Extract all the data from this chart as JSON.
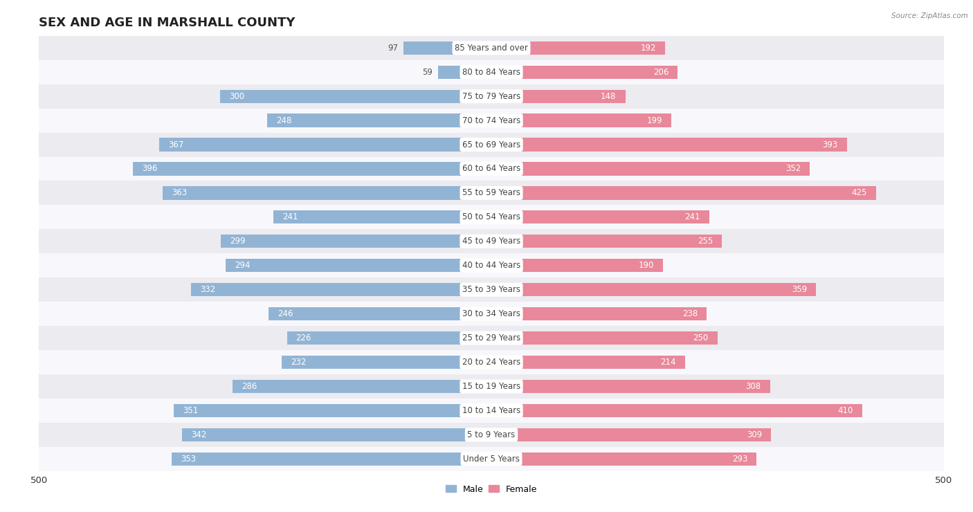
{
  "title": "SEX AND AGE IN MARSHALL COUNTY",
  "source": "Source: ZipAtlas.com",
  "categories": [
    "85 Years and over",
    "80 to 84 Years",
    "75 to 79 Years",
    "70 to 74 Years",
    "65 to 69 Years",
    "60 to 64 Years",
    "55 to 59 Years",
    "50 to 54 Years",
    "45 to 49 Years",
    "40 to 44 Years",
    "35 to 39 Years",
    "30 to 34 Years",
    "25 to 29 Years",
    "20 to 24 Years",
    "15 to 19 Years",
    "10 to 14 Years",
    "5 to 9 Years",
    "Under 5 Years"
  ],
  "male": [
    97,
    59,
    300,
    248,
    367,
    396,
    363,
    241,
    299,
    294,
    332,
    246,
    226,
    232,
    286,
    351,
    342,
    353
  ],
  "female": [
    192,
    206,
    148,
    199,
    393,
    352,
    425,
    241,
    255,
    190,
    359,
    238,
    250,
    214,
    308,
    410,
    309,
    293
  ],
  "male_color": "#92b4d4",
  "female_color": "#e8889a",
  "male_label_color_inside": "#ffffff",
  "male_label_color_outside": "#555555",
  "female_label_color_inside": "#ffffff",
  "female_label_color_outside": "#555555",
  "background_row_odd": "#ebebf0",
  "background_row_even": "#f8f8fc",
  "xlim": 500,
  "bar_height": 0.55,
  "label_threshold": 130
}
